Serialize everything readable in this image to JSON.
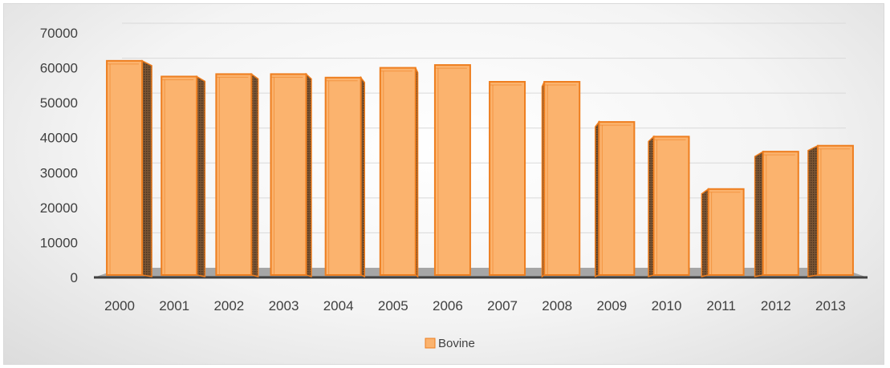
{
  "chart_data": {
    "type": "bar",
    "style": "3d-column",
    "categories": [
      "2000",
      "2001",
      "2002",
      "2003",
      "2004",
      "2005",
      "2006",
      "2007",
      "2008",
      "2009",
      "2010",
      "2011",
      "2012",
      "2013"
    ],
    "series": [
      {
        "name": "Bovine",
        "values": [
          62000,
          57500,
          58200,
          58200,
          57200,
          60000,
          60800,
          56000,
          56000,
          44500,
          40300,
          25300,
          36000,
          37700
        ]
      }
    ],
    "yticks": [
      "0",
      "10000",
      "20000",
      "30000",
      "40000",
      "50000",
      "60000",
      "70000"
    ],
    "ylim": [
      0,
      70000
    ],
    "legend": "bottom-center",
    "grid": true,
    "colors": {
      "bar_front": "#fbb36e",
      "bar_edge": "#ee7e1f",
      "bar_side": "#6b4a2e",
      "floor": "#a6a6a6",
      "axis": "#404040",
      "grid": "#d9d9d9"
    }
  }
}
